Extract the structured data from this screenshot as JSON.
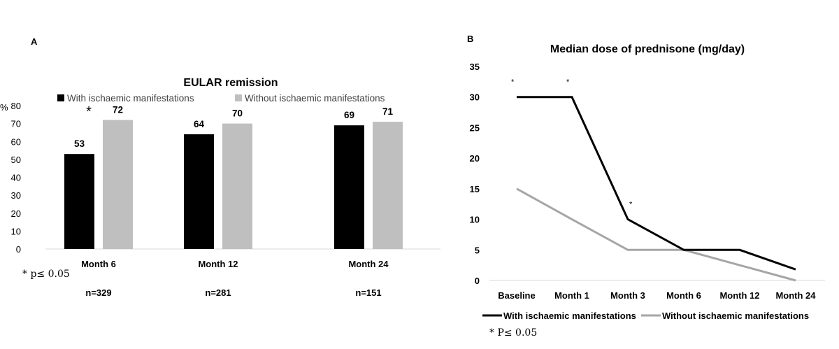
{
  "panels": {
    "a_label": "A",
    "b_label": "B"
  },
  "chart_data": [
    {
      "type": "bar",
      "title": "EULAR remission",
      "ylabel": "%",
      "ylim": [
        0,
        80
      ],
      "yticks": [
        0,
        10,
        20,
        30,
        40,
        50,
        60,
        70,
        80
      ],
      "categories": [
        "Month 6",
        "Month 12",
        "Month 24"
      ],
      "series": [
        {
          "name": "With ischaemic manifestations",
          "values": [
            53,
            64,
            69
          ],
          "color": "#000000"
        },
        {
          "name": "Without ischaemic manifestations",
          "values": [
            72,
            70,
            71
          ],
          "color": "#bfbfbf"
        }
      ],
      "significance_marks": [
        {
          "category_index": 0,
          "symbol": "*"
        }
      ],
      "sample_sizes": [
        "n=329",
        "n=281",
        "n=151"
      ],
      "footnote": "* p≤ 0.05",
      "legend_position": "top",
      "grid": false
    },
    {
      "type": "line",
      "title": "Median dose of prednisone (mg/day)",
      "ylim": [
        0,
        35
      ],
      "yticks": [
        0,
        5,
        10,
        15,
        20,
        25,
        30,
        35
      ],
      "x": [
        "Baseline",
        "Month 1",
        "Month 3",
        "Month 6",
        "Month 12",
        "Month 24"
      ],
      "series": [
        {
          "name": "With ischaemic manifestations",
          "values": [
            30,
            30,
            10,
            5,
            5,
            1.8
          ],
          "color": "#000000"
        },
        {
          "name": "Without ischaemic manifestations",
          "values": [
            15,
            10,
            5,
            5,
            2.5,
            0
          ],
          "color": "#a6a6a6"
        }
      ],
      "significance_marks": [
        {
          "x_index": 0,
          "symbol": "*"
        },
        {
          "x_index": 1,
          "symbol": "*"
        },
        {
          "x_index": 2,
          "symbol": "*"
        }
      ],
      "footnote": "* P≤ 0.05",
      "legend_position": "bottom",
      "grid": false
    }
  ]
}
